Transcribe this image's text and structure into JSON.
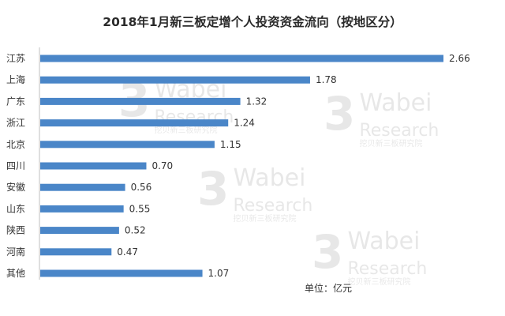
{
  "chart_data": {
    "type": "bar",
    "orientation": "horizontal",
    "title": "2018年1月新三板定增个人投资资金流向（按地区分）",
    "categories": [
      "江苏",
      "上海",
      "广东",
      "浙江",
      "北京",
      "四川",
      "安徽",
      "山东",
      "陕西",
      "河南",
      "其他"
    ],
    "values": [
      2.66,
      1.78,
      1.32,
      1.24,
      1.15,
      0.7,
      0.56,
      0.55,
      0.52,
      0.47,
      1.07
    ],
    "value_labels": [
      "2.66",
      "1.78",
      "1.32",
      "1.24",
      "1.15",
      "0.70",
      "0.56",
      "0.55",
      "0.52",
      "0.47",
      "1.07"
    ],
    "xlim": [
      0,
      2.66
    ],
    "grid": false,
    "bar_color": "#4a86c8",
    "unit_label": "单位：亿元"
  },
  "watermark": {
    "logo_glyph": "3",
    "brand": "Wabei",
    "subtitle": "Research",
    "tagline": "挖贝新三板研究院"
  }
}
